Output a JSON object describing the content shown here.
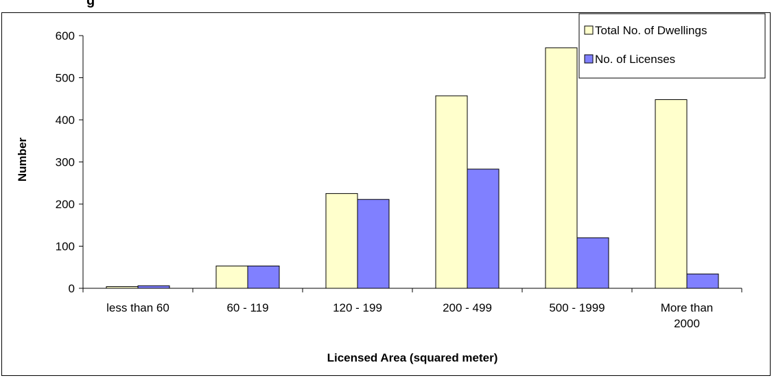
{
  "chart_data": {
    "type": "bar",
    "title": "g",
    "xlabel": "Licensed Area  (squared meter)",
    "ylabel": "Number",
    "ylim": [
      0,
      600
    ],
    "yticks": [
      0,
      100,
      200,
      300,
      400,
      500,
      600
    ],
    "categories": [
      [
        "less than 60"
      ],
      [
        "60  - 119"
      ],
      [
        "120 - 199"
      ],
      [
        "200 - 499"
      ],
      [
        "500 - 1999"
      ],
      [
        "More than",
        "2000"
      ]
    ],
    "series": [
      {
        "name": "Total No. of  Dwellings",
        "color": "#FFFFCC",
        "values": [
          4,
          53,
          225,
          457,
          571,
          448
        ]
      },
      {
        "name": "No. of  Licenses",
        "color": "#8080FF",
        "values": [
          6,
          53,
          211,
          283,
          120,
          34
        ]
      }
    ],
    "legend_position": "top-right",
    "grid": false
  }
}
